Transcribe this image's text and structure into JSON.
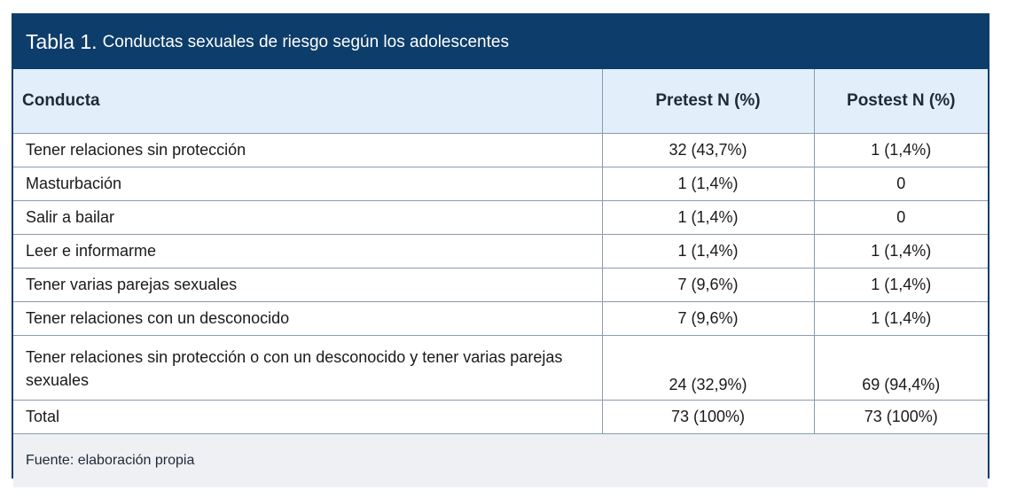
{
  "table": {
    "title_label": "Tabla 1.",
    "title_text": "Conductas sexuales de riesgo según los adolescentes",
    "headers": [
      "Conducta",
      "Pretest N (%)",
      "Postest N (%)"
    ],
    "rows": [
      [
        "Tener relaciones sin protección",
        "32 (43,7%)",
        "1 (1,4%)"
      ],
      [
        "Masturbación",
        "1 (1,4%)",
        "0"
      ],
      [
        "Salir a bailar",
        "1 (1,4%)",
        "0"
      ],
      [
        "Leer e informarme",
        "1 (1,4%)",
        "1 (1,4%)"
      ],
      [
        "Tener varias parejas sexuales",
        "7 (9,6%)",
        "1 (1,4%)"
      ],
      [
        "Tener relaciones con un desconocido",
        "7 (9,6%)",
        "1 (1,4%)"
      ],
      [
        "Tener relaciones sin protección o con un desconocido y tener varias parejas sexuales",
        "24 (32,9%)",
        "69 (94,4%)"
      ],
      [
        "Total",
        "73 (100%)",
        "73 (100%)"
      ]
    ],
    "source": "Fuente: elaboración propia"
  },
  "colors": {
    "title_bg": "#0d3d6b",
    "header_bg": "#e2effa",
    "footer_bg": "#eef0f3"
  }
}
